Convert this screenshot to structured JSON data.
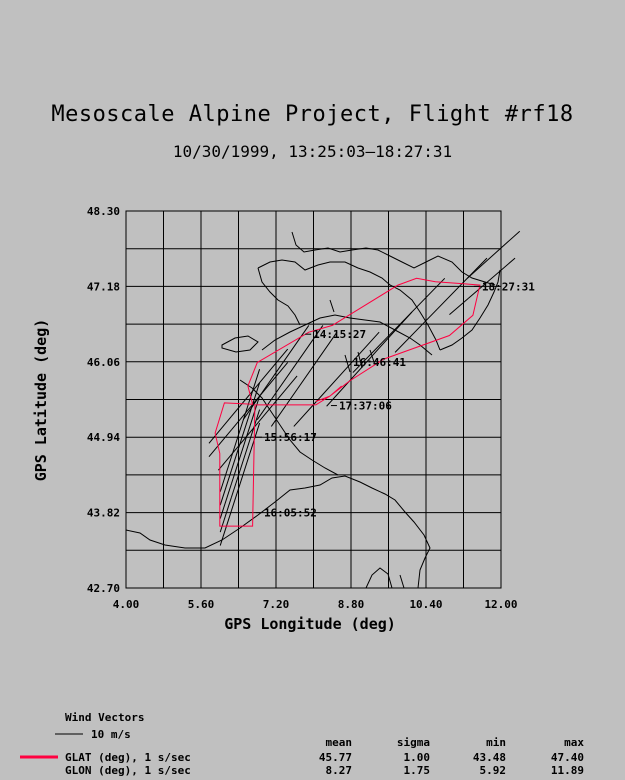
{
  "chart_data": {
    "type": "line",
    "title": "Mesoscale Alpine Project, Flight #rf18",
    "subtitle": "10/30/1999, 13:25:03–18:27:31",
    "xlabel": "GPS Longitude (deg)",
    "ylabel": "GPS Latitude (deg)",
    "xlim": [
      4.0,
      12.0
    ],
    "ylim": [
      42.7,
      48.3
    ],
    "x_ticks": [
      "4.00",
      "5.60",
      "7.20",
      "8.80",
      "10.40",
      "12.00"
    ],
    "y_ticks": [
      "48.30",
      "47.18",
      "46.06",
      "44.94",
      "43.82",
      "42.70"
    ],
    "grid": true,
    "track_color": "#ff0040",
    "track": [
      [
        8.05,
        45.47
      ],
      [
        8.35,
        45.55
      ],
      [
        8.78,
        45.78
      ],
      [
        9.5,
        46.1
      ],
      [
        10.9,
        46.45
      ],
      [
        11.4,
        46.75
      ],
      [
        11.55,
        47.2
      ],
      [
        11.2,
        47.22
      ],
      [
        10.6,
        47.25
      ],
      [
        10.2,
        47.3
      ],
      [
        9.8,
        47.2
      ],
      [
        8.4,
        46.6
      ],
      [
        7.9,
        46.5
      ],
      [
        6.8,
        46.05
      ],
      [
        6.6,
        45.7
      ],
      [
        6.7,
        45.43
      ],
      [
        6.1,
        45.45
      ],
      [
        5.9,
        45.0
      ],
      [
        6.0,
        44.7
      ],
      [
        6.0,
        43.62
      ],
      [
        6.7,
        43.62
      ],
      [
        6.75,
        45.42
      ],
      [
        8.05,
        45.42
      ],
      [
        8.35,
        45.55
      ],
      [
        8.6,
        45.7
      ]
    ],
    "annotations": [
      {
        "label": "18:27:31",
        "x": 11.55,
        "y": 47.18
      },
      {
        "label": "14:15:27",
        "x": 7.95,
        "y": 46.47
      },
      {
        "label": "16:46:41",
        "x": 8.8,
        "y": 46.06
      },
      {
        "label": "17:37:06",
        "x": 8.5,
        "y": 45.41
      },
      {
        "label": "15:56:17",
        "x": 6.9,
        "y": 44.94
      },
      {
        "label": "16:05:52",
        "x": 6.9,
        "y": 43.82
      }
    ],
    "wind_vectors": [
      [
        6.25,
        45.25,
        1.2,
        1.0
      ],
      [
        6.25,
        45.05,
        1.2,
        1.0
      ],
      [
        6.45,
        44.85,
        1.2,
        1.0
      ],
      [
        6.25,
        44.65,
        0.6,
        1.3
      ],
      [
        6.25,
        44.45,
        0.6,
        1.3
      ],
      [
        6.25,
        44.25,
        0.6,
        1.3
      ],
      [
        6.25,
        44.05,
        0.6,
        1.3
      ],
      [
        6.25,
        43.85,
        0.6,
        1.3
      ],
      [
        6.9,
        45.6,
        1.0,
        1.0
      ],
      [
        7.2,
        45.6,
        1.0,
        1.0
      ],
      [
        7.5,
        45.5,
        1.0,
        1.0
      ],
      [
        8.1,
        45.5,
        1.3,
        1.0
      ],
      [
        8.8,
        45.8,
        1.3,
        1.0
      ],
      [
        9.4,
        46.3,
        1.4,
        1.0
      ],
      [
        10.3,
        46.6,
        1.4,
        1.0
      ],
      [
        11.3,
        47.0,
        1.0,
        0.6
      ],
      [
        11.6,
        47.5,
        0.8,
        0.5
      ]
    ],
    "legend": {
      "wind_title": "Wind Vectors",
      "wind_scale": "10 m/s",
      "stats_headers": [
        "mean",
        "sigma",
        "min",
        "max"
      ],
      "rows": [
        {
          "label": "GLAT (deg), 1 s/sec",
          "values": [
            "45.77",
            "1.00",
            "43.48",
            "47.40"
          ],
          "color": "#ff0040"
        },
        {
          "label": "GLON (deg), 1 s/sec",
          "values": [
            "8.27",
            "1.75",
            "5.92",
            "11.89"
          ],
          "color": ""
        }
      ]
    }
  }
}
